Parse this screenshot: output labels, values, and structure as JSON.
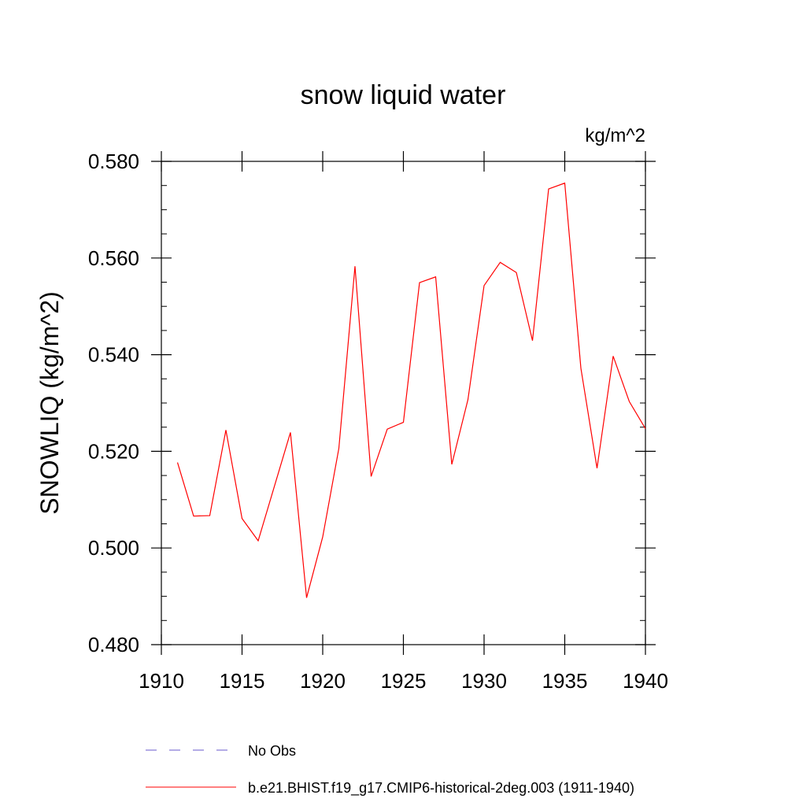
{
  "chart_data": {
    "type": "line",
    "title": "snow liquid water",
    "units_label": "kg/m^2",
    "ylabel": "SNOWLIQ  (kg/m^2)",
    "xlabel": "",
    "xlim": [
      1910,
      1940
    ],
    "ylim": [
      0.48,
      0.58
    ],
    "x_ticks": [
      1910,
      1915,
      1920,
      1925,
      1930,
      1935,
      1940
    ],
    "x_tick_labels": [
      "1910",
      "1915",
      "1920",
      "1925",
      "1930",
      "1935",
      "1940"
    ],
    "y_ticks": [
      0.48,
      0.5,
      0.52,
      0.54,
      0.56,
      0.58
    ],
    "y_tick_labels": [
      "0.480",
      "0.500",
      "0.520",
      "0.540",
      "0.560",
      "0.580"
    ],
    "grid": false,
    "legend_position": "bottom",
    "series": [
      {
        "name": "b.e21.BHIST.f19_g17.CMIP6-historical-2deg.003 (1911-1940)",
        "color": "#ff0000",
        "style": "solid",
        "x": [
          1911,
          1912,
          1913,
          1914,
          1915,
          1916,
          1917,
          1918,
          1919,
          1920,
          1921,
          1922,
          1923,
          1924,
          1925,
          1926,
          1927,
          1928,
          1929,
          1930,
          1931,
          1932,
          1933,
          1934,
          1935,
          1936,
          1937,
          1938,
          1939,
          1940
        ],
        "values": [
          0.5177,
          0.5066,
          0.5067,
          0.5244,
          0.5061,
          0.5015,
          0.5127,
          0.5239,
          0.4897,
          0.5023,
          0.5206,
          0.5583,
          0.5148,
          0.5246,
          0.526,
          0.5549,
          0.5561,
          0.5173,
          0.5307,
          0.5543,
          0.5591,
          0.557,
          0.5429,
          0.5743,
          0.5755,
          0.5372,
          0.5165,
          0.5397,
          0.5303,
          0.5247
        ]
      }
    ],
    "legend": [
      {
        "label": "No Obs",
        "color": "#6a5acd",
        "style": "dashed"
      },
      {
        "label": "b.e21.BHIST.f19_g17.CMIP6-historical-2deg.003 (1911-1940)",
        "color": "#ff0000",
        "style": "solid"
      }
    ]
  }
}
